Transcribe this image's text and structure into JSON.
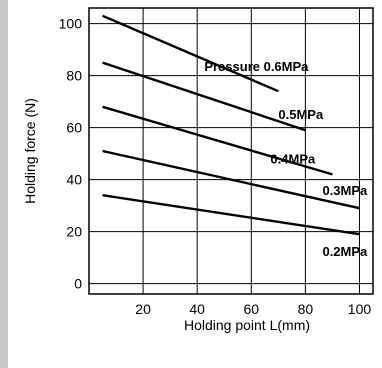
{
  "chart_data": {
    "type": "line",
    "title": "",
    "xlabel": "Holding point L(mm)",
    "ylabel": "Holding force (N)",
    "xlim": [
      0,
      105
    ],
    "ylim": [
      -4,
      106
    ],
    "xticks": [
      20,
      40,
      60,
      80,
      100
    ],
    "yticks": [
      0,
      20,
      40,
      60,
      80,
      100
    ],
    "grid": true,
    "series": [
      {
        "name": "Pressure 0.6MPa",
        "x": [
          5,
          70
        ],
        "y": [
          103,
          74
        ]
      },
      {
        "name": "0.5MPa",
        "x": [
          5,
          80
        ],
        "y": [
          85,
          59
        ]
      },
      {
        "name": "0.4MPa",
        "x": [
          5,
          90
        ],
        "y": [
          68,
          42
        ]
      },
      {
        "name": "0.3MPa",
        "x": [
          5,
          100
        ],
        "y": [
          51,
          29
        ]
      },
      {
        "name": "0.2MPa",
        "x": [
          5,
          100
        ],
        "y": [
          34,
          19
        ]
      }
    ],
    "colors": {
      "line": "#000000",
      "grid": "#000000",
      "frame": "#000000",
      "left_band": "#c8c8c8"
    }
  }
}
